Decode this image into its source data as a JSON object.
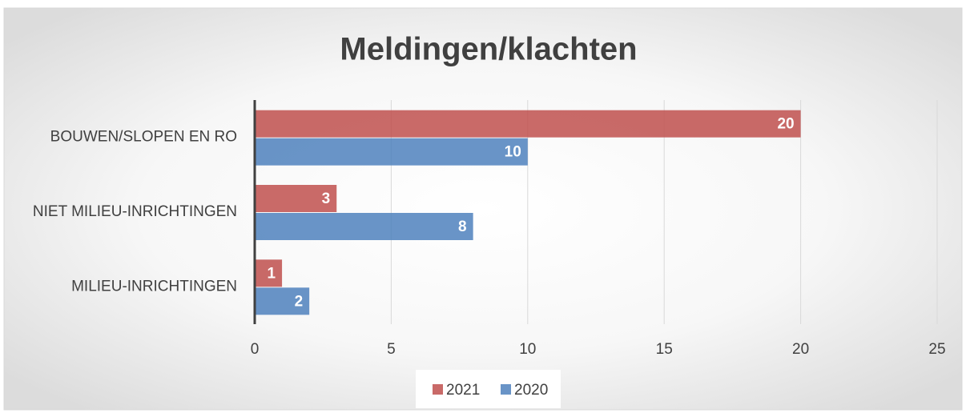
{
  "chart_data": {
    "type": "bar",
    "orientation": "horizontal",
    "title": "Meldingen/klachten",
    "categories": [
      "BOUWEN/SLOPEN EN RO",
      "NIET MILIEU-INRICHTINGEN",
      "MILIEU-INRICHTINGEN"
    ],
    "series": [
      {
        "name": "2021",
        "color": "#c0504d",
        "values": [
          20,
          3,
          1
        ]
      },
      {
        "name": "2020",
        "color": "#4f81bd",
        "values": [
          10,
          8,
          2
        ]
      }
    ],
    "xlim": [
      0,
      25
    ],
    "xticks": [
      0,
      5,
      10,
      15,
      20,
      25
    ],
    "grid": true,
    "legend": "bottom"
  }
}
